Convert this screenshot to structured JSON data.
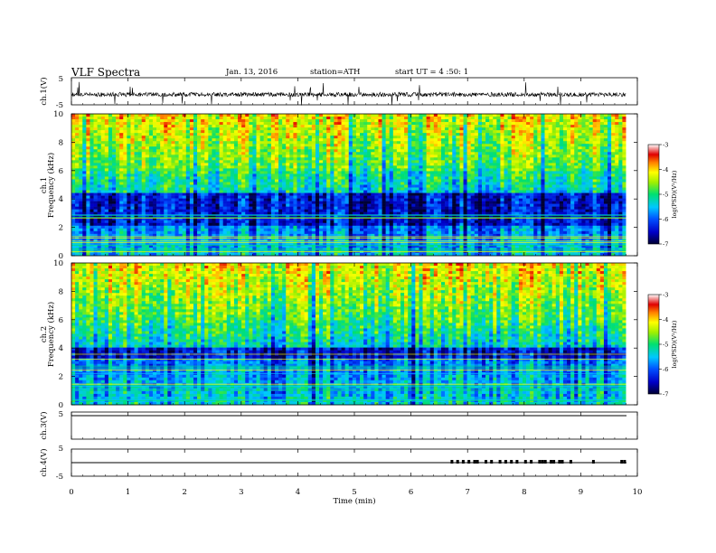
{
  "header": {
    "title": "VLF  Spectra",
    "date": "Jan. 13, 2016",
    "station": "station=ATH",
    "start": "start  UT =  4 :50: 1"
  },
  "chart_data": [
    {
      "type": "line",
      "id": "ch1-waveform",
      "ylabel": "ch.1(V)",
      "ylim": [
        -5,
        5
      ],
      "yticks": [
        "5",
        "-5"
      ],
      "x_unit": "min",
      "xlim": [
        0,
        10
      ],
      "baseline_v": -1.2,
      "note": "dense noisy waveform with frequent spikes"
    },
    {
      "type": "heatmap",
      "id": "ch1-spectrogram",
      "ylabel": "Frequency (kHz)",
      "channel_label": "ch.1",
      "ylim": [
        0,
        10
      ],
      "yticks": [
        "0",
        "2",
        "4",
        "6",
        "8",
        "10"
      ],
      "xlim": [
        0,
        9.8
      ],
      "colorbar": {
        "label": "log(PSD)(V²/Hz)",
        "range": [
          -7,
          -3
        ],
        "ticks": [
          "-3",
          "-4",
          "-5",
          "-6",
          "-7"
        ]
      },
      "dark_band_khz": [
        2.2,
        4.5
      ]
    },
    {
      "type": "heatmap",
      "id": "ch2-spectrogram",
      "ylabel": "Frequency (kHz)",
      "channel_label": "ch.2",
      "ylim": [
        0,
        10
      ],
      "yticks": [
        "0",
        "2",
        "4",
        "6",
        "8",
        "10"
      ],
      "xlim": [
        0,
        9.8
      ],
      "colorbar": {
        "label": "log(PSD)(V²/Hz)",
        "range": [
          -7,
          -3
        ],
        "ticks": [
          "-3",
          "-4",
          "-5",
          "-6",
          "-7"
        ]
      },
      "dark_band_khz": [
        3.2,
        4.1
      ]
    },
    {
      "type": "line",
      "id": "ch3-waveform",
      "ylabel": "ch.3(V)",
      "ylim": [
        -5,
        5
      ],
      "yticks": [
        "5"
      ],
      "xlim": [
        0,
        10
      ],
      "baseline_v": 0,
      "note": "flat line"
    },
    {
      "type": "line",
      "id": "ch4-waveform",
      "ylabel": "ch.4(V)",
      "ylim": [
        -5,
        5
      ],
      "yticks": [
        "5",
        "-5"
      ],
      "xlim": [
        0,
        10
      ],
      "baseline_v": 0,
      "pulses_min": [
        6.7,
        6.8,
        6.9,
        7.0,
        7.1,
        7.15,
        7.3,
        7.4,
        7.55,
        7.65,
        7.75,
        7.85,
        8.0,
        8.1,
        8.25,
        8.3,
        8.35,
        8.45,
        8.5,
        8.6,
        8.65,
        8.8,
        9.2,
        9.7,
        9.75
      ]
    }
  ],
  "time_axis": {
    "label": "Time  (min)",
    "ticks": [
      "0",
      "1",
      "2",
      "3",
      "4",
      "5",
      "6",
      "7",
      "8",
      "9",
      "10"
    ]
  }
}
